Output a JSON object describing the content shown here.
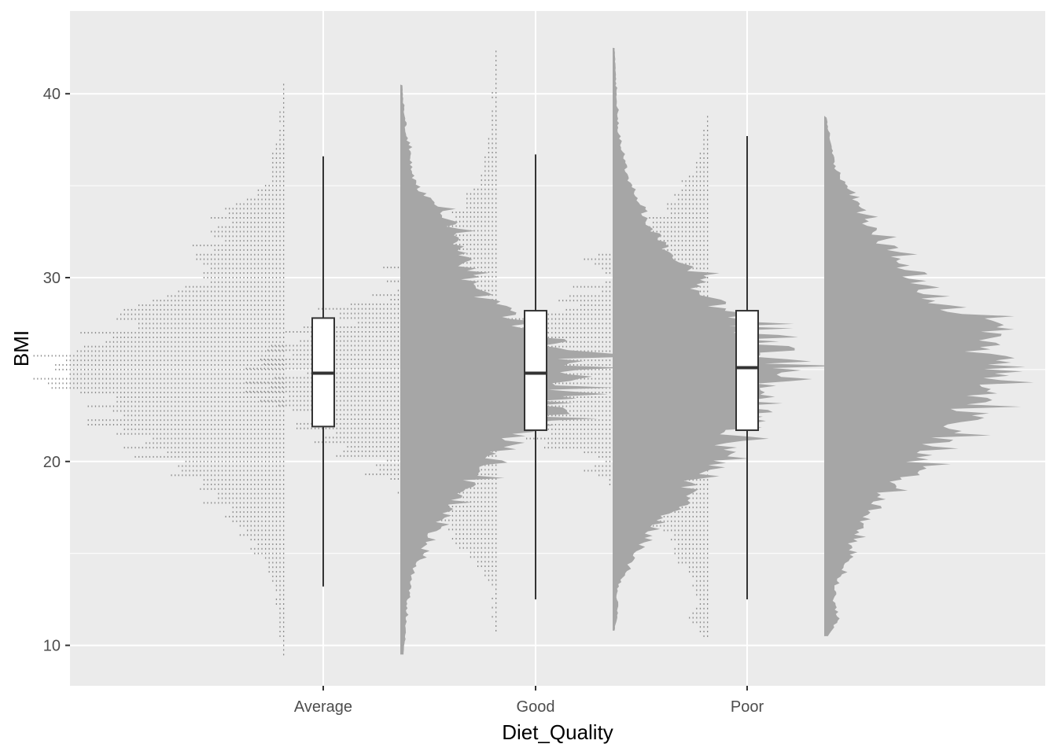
{
  "chart_data": {
    "type": "raincloud",
    "xlabel": "Diet_Quality",
    "ylabel": "BMI",
    "categories": [
      "Average",
      "Good",
      "Poor"
    ],
    "ylim": [
      7.8,
      44.5
    ],
    "yticks": [
      10,
      20,
      30,
      40
    ],
    "grid": true,
    "legend": "none",
    "colors": {
      "panel": "#ebebeb",
      "grid": "#ffffff",
      "density": "#a6a6a6",
      "dots": "#8c8c8c",
      "box_fill": "#ffffff",
      "box_line": "#333333",
      "tick_text": "#4d4d4d"
    },
    "boxplots": [
      {
        "category": "Average",
        "whisker_low": 13.2,
        "q1": 21.9,
        "median": 24.8,
        "q3": 27.8,
        "whisker_high": 36.6
      },
      {
        "category": "Good",
        "whisker_low": 12.5,
        "q1": 21.7,
        "median": 24.8,
        "q3": 28.2,
        "whisker_high": 36.7
      },
      {
        "category": "Poor",
        "whisker_low": 12.5,
        "q1": 21.7,
        "median": 25.1,
        "q3": 28.2,
        "whisker_high": 37.7
      }
    ],
    "densities": [
      {
        "category": "Average",
        "y_min": 9.5,
        "y_max": 40.5,
        "profile": [
          [
            9.5,
            0.02
          ],
          [
            11,
            0.03
          ],
          [
            12.5,
            0.04
          ],
          [
            14,
            0.07
          ],
          [
            15,
            0.12
          ],
          [
            16,
            0.17
          ],
          [
            17,
            0.24
          ],
          [
            18,
            0.3
          ],
          [
            19,
            0.4
          ],
          [
            20,
            0.52
          ],
          [
            21,
            0.6
          ],
          [
            22,
            0.75
          ],
          [
            23,
            0.85
          ],
          [
            24,
            0.92
          ],
          [
            25,
            1.0
          ],
          [
            26,
            0.9
          ],
          [
            27,
            0.78
          ],
          [
            28,
            0.6
          ],
          [
            29,
            0.45
          ],
          [
            30,
            0.38
          ],
          [
            31,
            0.35
          ],
          [
            32,
            0.33
          ],
          [
            33,
            0.28
          ],
          [
            34,
            0.2
          ],
          [
            35,
            0.08
          ],
          [
            36,
            0.06
          ],
          [
            37,
            0.05
          ],
          [
            38,
            0.03
          ],
          [
            39,
            0.02
          ],
          [
            40.5,
            0.01
          ]
        ]
      },
      {
        "category": "Good",
        "y_min": 10.8,
        "y_max": 42.5,
        "profile": [
          [
            10.8,
            0.01
          ],
          [
            12,
            0.03
          ],
          [
            13,
            0.02
          ],
          [
            14,
            0.07
          ],
          [
            15,
            0.12
          ],
          [
            16,
            0.2
          ],
          [
            17,
            0.28
          ],
          [
            18,
            0.4
          ],
          [
            19,
            0.44
          ],
          [
            20,
            0.55
          ],
          [
            21,
            0.65
          ],
          [
            22,
            0.72
          ],
          [
            23,
            0.82
          ],
          [
            24,
            0.9
          ],
          [
            25,
            1.0
          ],
          [
            26,
            0.88
          ],
          [
            27,
            0.78
          ],
          [
            28,
            0.68
          ],
          [
            29,
            0.5
          ],
          [
            30,
            0.45
          ],
          [
            31,
            0.36
          ],
          [
            32,
            0.26
          ],
          [
            33,
            0.2
          ],
          [
            34,
            0.15
          ],
          [
            35,
            0.1
          ],
          [
            36,
            0.07
          ],
          [
            37,
            0.05
          ],
          [
            38,
            0.03
          ],
          [
            40,
            0.02
          ],
          [
            42.5,
            0.01
          ]
        ]
      },
      {
        "category": "Poor",
        "y_min": 10.5,
        "y_max": 38.8,
        "profile": [
          [
            10.5,
            0.02
          ],
          [
            11.5,
            0.08
          ],
          [
            12.5,
            0.05
          ],
          [
            13.5,
            0.07
          ],
          [
            14.5,
            0.12
          ],
          [
            15.5,
            0.15
          ],
          [
            16.5,
            0.2
          ],
          [
            17.5,
            0.28
          ],
          [
            18.5,
            0.34
          ],
          [
            19.5,
            0.5
          ],
          [
            20.5,
            0.56
          ],
          [
            21.5,
            0.68
          ],
          [
            22.5,
            0.78
          ],
          [
            23.5,
            0.85
          ],
          [
            24.5,
            0.92
          ],
          [
            25,
            1.0
          ],
          [
            26,
            0.9
          ],
          [
            27,
            0.98
          ],
          [
            28,
            0.78
          ],
          [
            29,
            0.6
          ],
          [
            30,
            0.5
          ],
          [
            31,
            0.44
          ],
          [
            32,
            0.3
          ],
          [
            33,
            0.24
          ],
          [
            34,
            0.18
          ],
          [
            35,
            0.12
          ],
          [
            36,
            0.06
          ],
          [
            37,
            0.04
          ],
          [
            38.8,
            0.01
          ]
        ]
      }
    ]
  }
}
